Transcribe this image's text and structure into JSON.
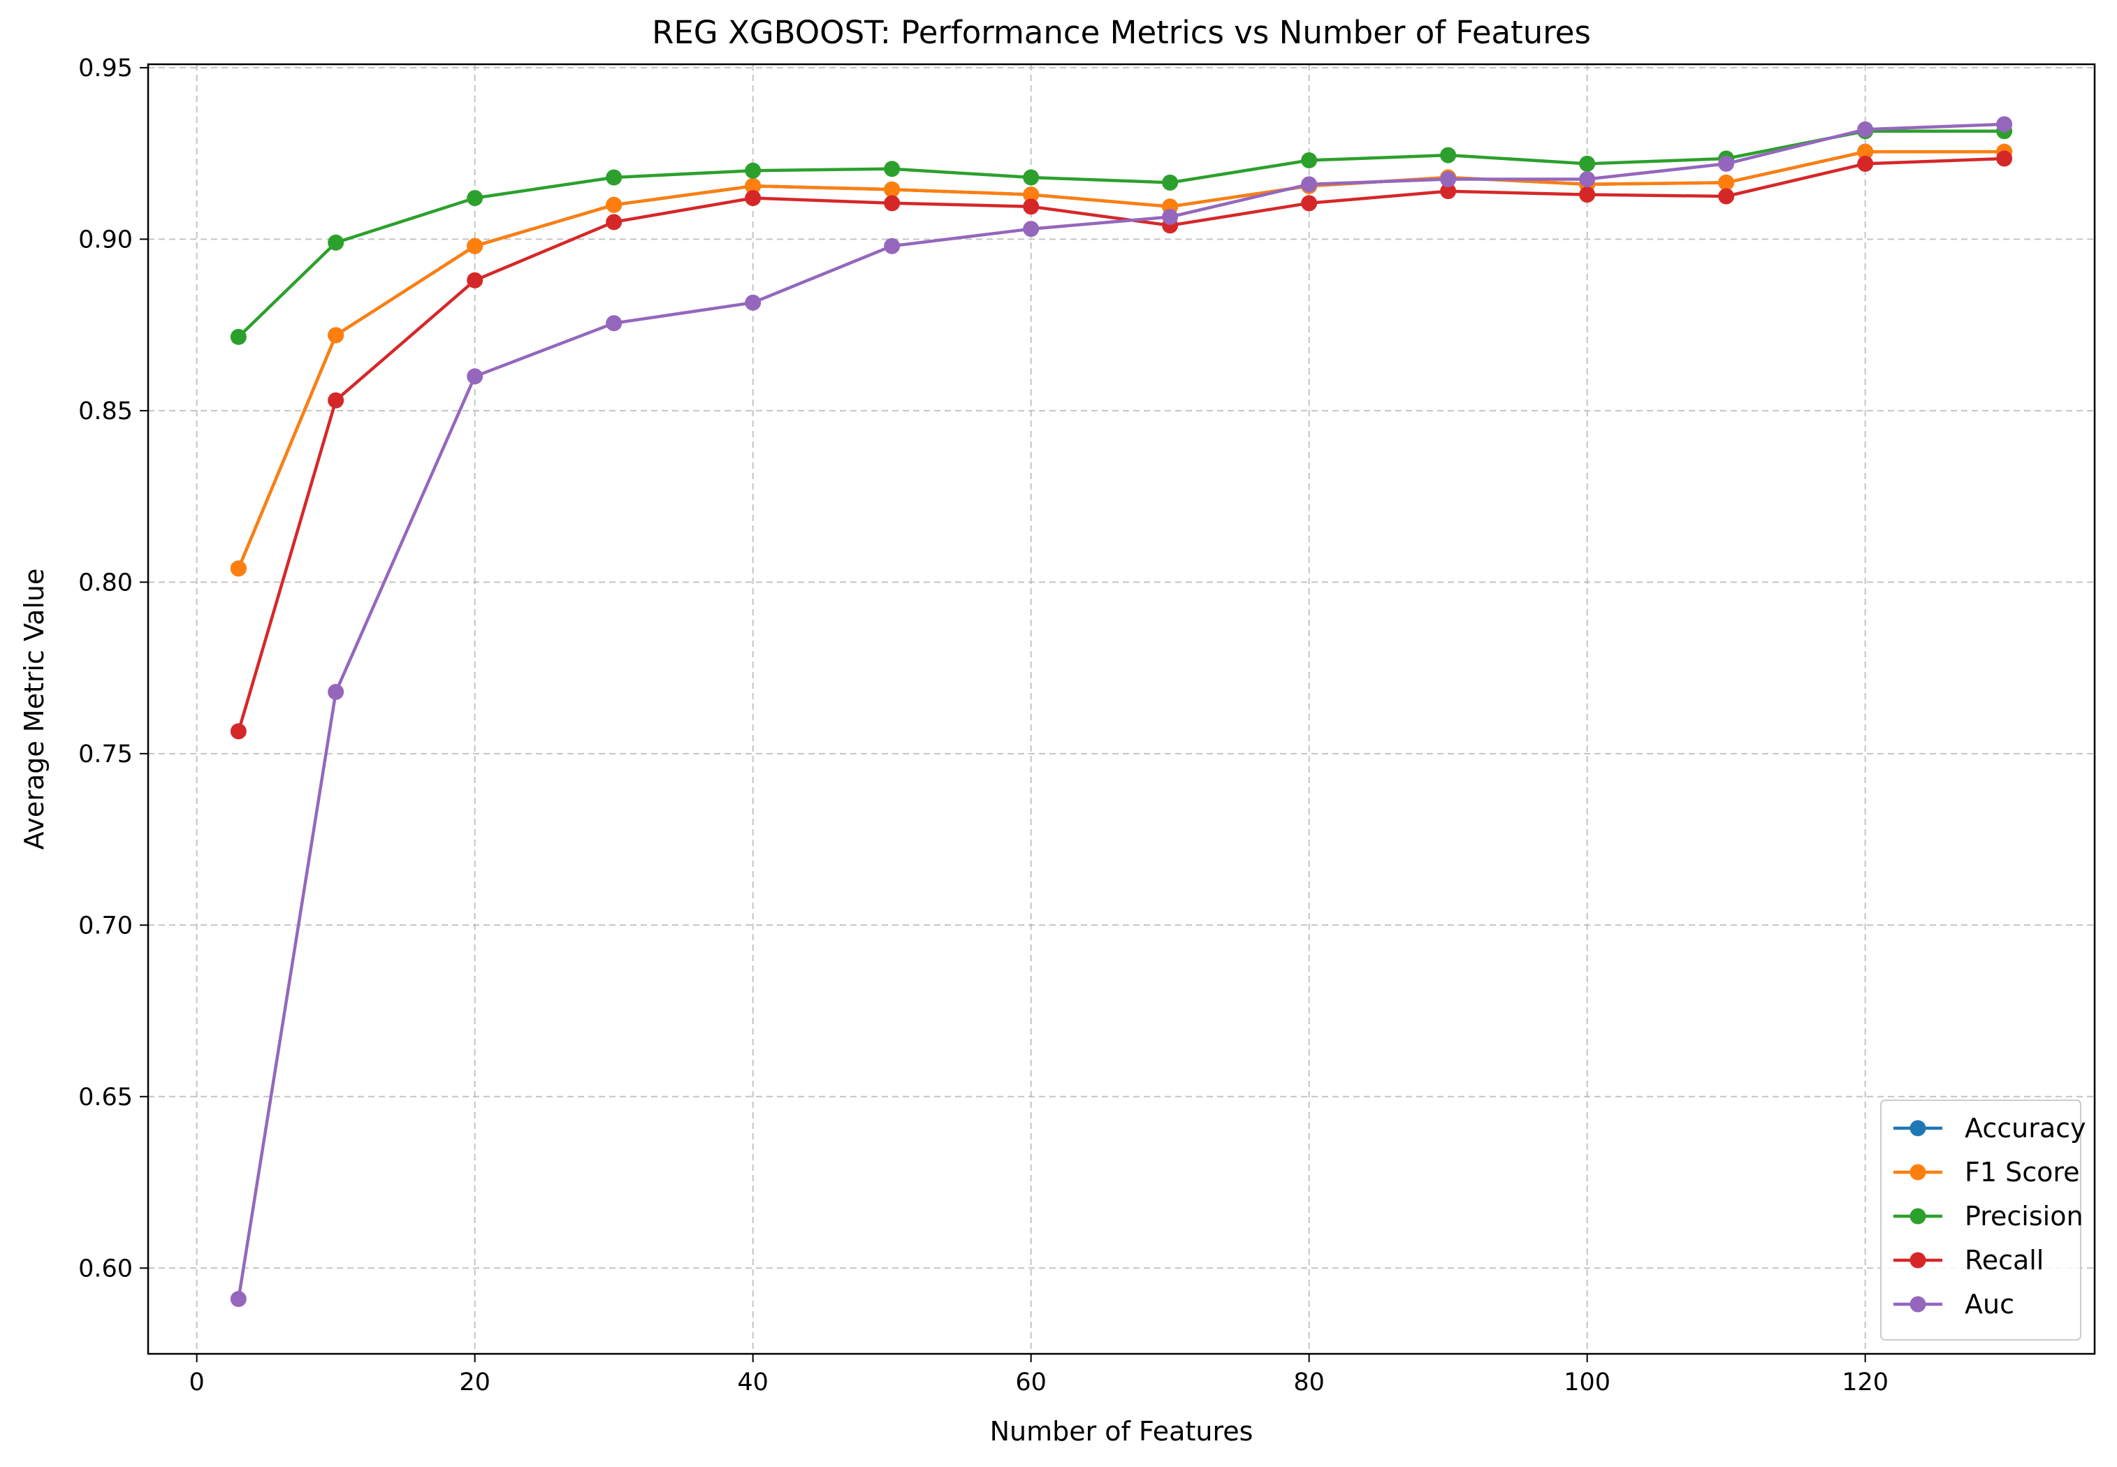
{
  "chart_data": {
    "type": "line",
    "title": "REG XGBOOST: Performance Metrics vs Number of Features",
    "xlabel": "Number of Features",
    "ylabel": "Average Metric Value",
    "xlim": [
      -3.5,
      136.5
    ],
    "ylim": [
      0.575,
      0.951
    ],
    "xticks": [
      0,
      20,
      40,
      60,
      80,
      100,
      120
    ],
    "yticks": [
      0.6,
      0.65,
      0.7,
      0.75,
      0.8,
      0.85,
      0.9,
      0.95
    ],
    "ytick_labels": [
      "0.60",
      "0.65",
      "0.70",
      "0.75",
      "0.80",
      "0.85",
      "0.90",
      "0.95"
    ],
    "grid": true,
    "legend_position": "lower right",
    "x": [
      3,
      10,
      20,
      30,
      40,
      50,
      60,
      70,
      80,
      90,
      100,
      110,
      120,
      130
    ],
    "series": [
      {
        "name": "Accuracy",
        "color": "#1f77b4",
        "values": [
          0.804,
          0.872,
          0.898,
          0.91,
          0.9155,
          0.9145,
          0.913,
          0.9095,
          0.9155,
          0.918,
          0.916,
          0.9165,
          0.9255,
          0.9255
        ]
      },
      {
        "name": "F1 Score",
        "color": "#ff7f0e",
        "values": [
          0.804,
          0.872,
          0.898,
          0.91,
          0.9155,
          0.9145,
          0.913,
          0.9095,
          0.9155,
          0.918,
          0.916,
          0.9165,
          0.9255,
          0.9255
        ]
      },
      {
        "name": "Precision",
        "color": "#2ca02c",
        "values": [
          0.8715,
          0.899,
          0.912,
          0.918,
          0.92,
          0.9205,
          0.918,
          0.9165,
          0.923,
          0.9245,
          0.922,
          0.9235,
          0.9315,
          0.9315
        ]
      },
      {
        "name": "Recall",
        "color": "#d62728",
        "values": [
          0.7565,
          0.853,
          0.888,
          0.905,
          0.912,
          0.9105,
          0.9095,
          0.904,
          0.9105,
          0.914,
          0.913,
          0.9125,
          0.922,
          0.9235
        ]
      },
      {
        "name": "Auc",
        "color": "#9467bd",
        "values": [
          0.591,
          0.768,
          0.86,
          0.8755,
          0.8815,
          0.898,
          0.903,
          0.9065,
          0.916,
          0.9175,
          0.9175,
          0.922,
          0.932,
          0.9335
        ]
      }
    ]
  }
}
